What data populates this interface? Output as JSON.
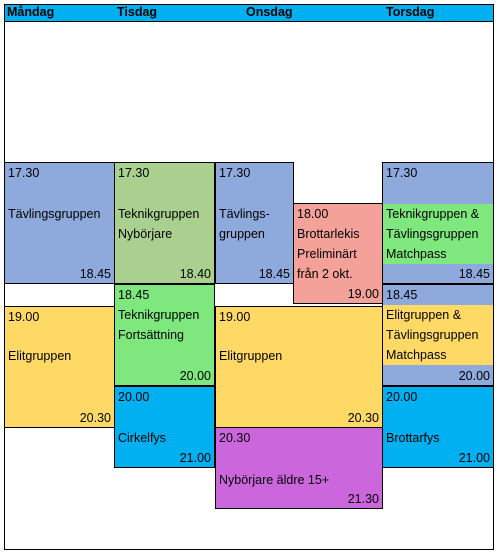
{
  "days": [
    "Måndag",
    "Tisdag",
    "Onsdag",
    "Torsdag"
  ],
  "colors": {
    "header": "#00b0f0",
    "blue_purple": "#8ea9db",
    "olive_green": "#a9d08e",
    "light_green": "#7ee77e",
    "salmon": "#f4a19a",
    "yellow": "#ffd966",
    "cyan": "#00b0f0",
    "magenta": "#cc66dd"
  },
  "blocks": {
    "mon_tavling": {
      "start": "17.30",
      "lines": [
        "Tävlingsgruppen"
      ],
      "end": "18.45"
    },
    "mon_elit": {
      "start": "19.00",
      "lines": [
        "Elitgruppen"
      ],
      "end": "20.30"
    },
    "tue_teknik_nyb": {
      "start": "17.30",
      "lines": [
        "Teknikgruppen",
        "Nybörjare"
      ],
      "end": "18.40"
    },
    "tue_teknik_fort": {
      "start": "18.45",
      "lines": [
        "Teknikgruppen",
        "Fortsättning"
      ],
      "end": "20.00"
    },
    "tue_cirkel": {
      "start": "20.00",
      "lines": [
        "Cirkelfys"
      ],
      "end": "21.00"
    },
    "wed_tavling": {
      "start": "17.30",
      "lines": [
        "Tävlings-",
        "gruppen"
      ],
      "end": "18.45"
    },
    "wed_brottar": {
      "start": "18.00",
      "lines": [
        "Brottarlekis",
        "Preliminärt",
        "från 2 okt."
      ],
      "end": "19.00"
    },
    "wed_elit": {
      "start": "19.00",
      "lines": [
        "Elitgruppen"
      ],
      "end": "20.30"
    },
    "wed_nyb": {
      "start": "20.30",
      "lines": [
        "Nybörjare äldre 15+"
      ],
      "end": "21.30"
    },
    "thu_teknik": {
      "start": "17.30",
      "lines": [
        "Teknikgruppen &",
        "Tävlingsgruppen",
        "Matchpass"
      ],
      "end": "18.45"
    },
    "thu_elit": {
      "start": "18.45",
      "lines": [
        "Elitgruppen &",
        "Tävlingsgruppen",
        "Matchpass"
      ],
      "end": "20.00"
    },
    "thu_fys": {
      "start": "20.00",
      "lines": [
        "Brottarfys"
      ],
      "end": "21.00"
    }
  }
}
